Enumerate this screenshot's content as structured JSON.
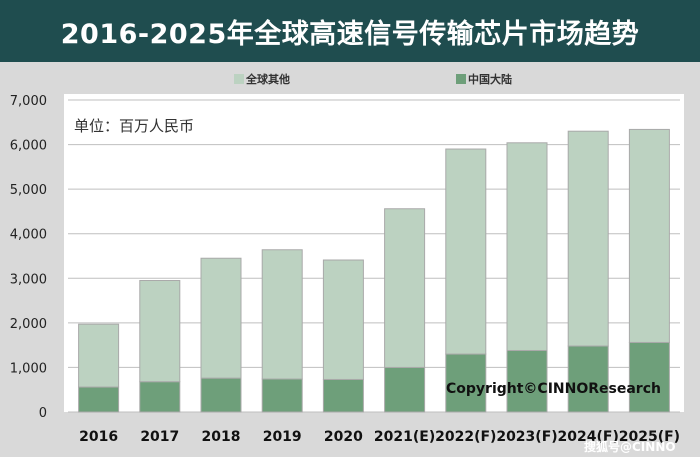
{
  "title": "2016-2025年全球高速信号传输芯片市场趋势",
  "unit_label": "单位：百万人民币",
  "copyright": "Copyright©CINNOResearch",
  "watermark": "搜狐号@CINNO",
  "colors": {
    "title_bg": "#1f4d4f",
    "plot_bg": "#ffffff",
    "outer_bg": "#d9d9d9",
    "gridline": "#bfbfbf",
    "series_global_other": "#bcd2c1",
    "series_mainland": "#6e9f7a"
  },
  "chart_data": {
    "type": "bar",
    "stacked": true,
    "categories": [
      "2016",
      "2017",
      "2018",
      "2019",
      "2020",
      "2021(E)",
      "2022(F)",
      "2023(F)",
      "2024(F)",
      "2025(F)"
    ],
    "series": [
      {
        "name": "中国大陆",
        "color": "#6e9f7a",
        "values": [
          560,
          680,
          760,
          740,
          730,
          1000,
          1300,
          1380,
          1480,
          1560
        ]
      },
      {
        "name": "全球其他",
        "color": "#bcd2c1",
        "values": [
          1410,
          2270,
          2690,
          2900,
          2680,
          3560,
          4600,
          4660,
          4820,
          4780
        ]
      }
    ],
    "y_ticks": [
      "0",
      "1,000",
      "2,000",
      "3,000",
      "4,000",
      "5,000",
      "6,000",
      "7,000"
    ],
    "ylim": [
      0,
      7000
    ],
    "y_step": 1000,
    "grid": true,
    "legend": {
      "placement": "top",
      "order": [
        "全球其他",
        "中国大陆"
      ]
    }
  }
}
